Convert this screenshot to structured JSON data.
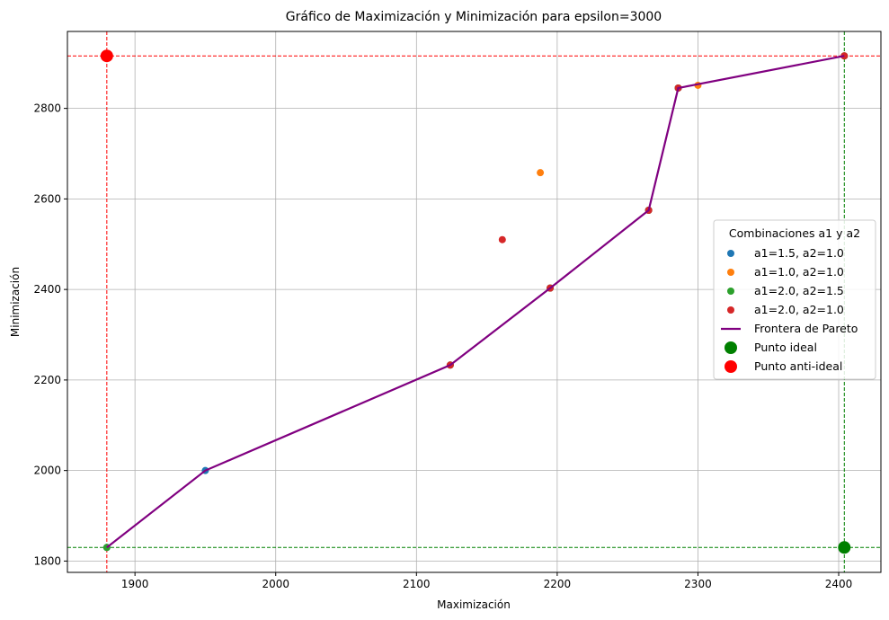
{
  "chart_data": {
    "type": "scatter",
    "title": "Gráfico de Maximización y Minimización para epsilon=3000",
    "xlabel": "Maximización",
    "ylabel": "Minimización",
    "xlim": [
      1852,
      2430
    ],
    "ylim": [
      1775,
      2970
    ],
    "xticks": [
      1900,
      2000,
      2100,
      2200,
      2300,
      2400
    ],
    "yticks": [
      1800,
      2000,
      2200,
      2400,
      2600,
      2800
    ],
    "grid": true,
    "legend": {
      "title": "Combinaciones a1 y a2",
      "placement": "center-right"
    },
    "series": [
      {
        "name": "a1=1.5, a2=1.0",
        "kind": "scatter",
        "color": "#1f77b4",
        "points": [
          [
            1880,
            1830
          ],
          [
            1950,
            2000
          ],
          [
            2124,
            2233
          ],
          [
            2195,
            2403
          ],
          [
            2265,
            2575
          ],
          [
            2286,
            2845
          ],
          [
            2404,
            2916
          ]
        ]
      },
      {
        "name": "a1=1.0, a2=1.0",
        "kind": "scatter",
        "color": "#ff7f0e",
        "points": [
          [
            2188,
            2658
          ],
          [
            2300,
            2851
          ],
          [
            2404,
            2916
          ]
        ]
      },
      {
        "name": "a1=2.0, a2=1.5",
        "kind": "scatter",
        "color": "#2ca02c",
        "points": [
          [
            1880,
            1830
          ],
          [
            2124,
            2233
          ],
          [
            2195,
            2403
          ],
          [
            2265,
            2575
          ],
          [
            2286,
            2845
          ],
          [
            2404,
            2916
          ]
        ]
      },
      {
        "name": "a1=2.0, a2=1.0",
        "kind": "scatter",
        "color": "#d62728",
        "points": [
          [
            2161,
            2510
          ],
          [
            2124,
            2233
          ],
          [
            2195,
            2403
          ],
          [
            2265,
            2575
          ],
          [
            2286,
            2845
          ],
          [
            2404,
            2916
          ]
        ]
      },
      {
        "name": "Frontera de Pareto",
        "kind": "line",
        "color": "#800080",
        "points": [
          [
            1880,
            1830
          ],
          [
            1950,
            2000
          ],
          [
            2124,
            2233
          ],
          [
            2195,
            2403
          ],
          [
            2265,
            2575
          ],
          [
            2286,
            2845
          ],
          [
            2404,
            2916
          ]
        ]
      },
      {
        "name": "Punto ideal",
        "kind": "marker",
        "color": "#008000",
        "points": [
          [
            2404,
            1830
          ]
        ]
      },
      {
        "name": "Punto anti-ideal",
        "kind": "marker",
        "color": "#ff0000",
        "points": [
          [
            1880,
            2916
          ]
        ]
      }
    ],
    "reference_lines": {
      "ideal": {
        "x": 2404,
        "y": 1830,
        "color": "#008000"
      },
      "anti_ideal": {
        "x": 1880,
        "y": 2916,
        "color": "#ff0000"
      }
    }
  }
}
